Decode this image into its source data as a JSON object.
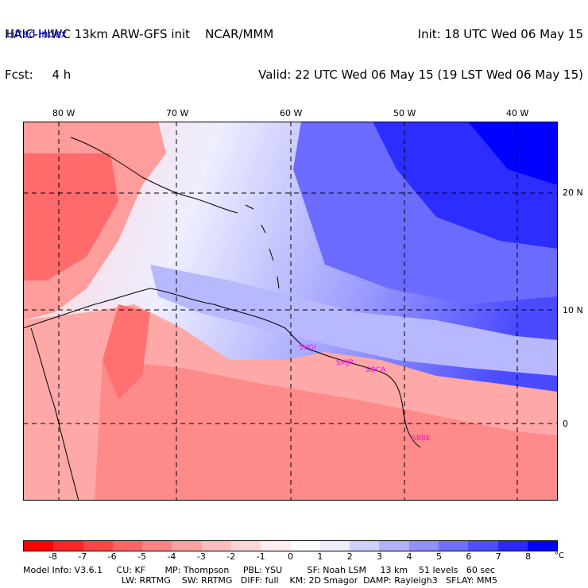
{
  "header": {
    "left_line1": "HAIC-HIWC 13km ARW-GFS init    NCAR/MMM",
    "left_line2": "Fcst:     4 h",
    "right_line1": "Init: 18 UTC Wed 06 May 15",
    "right_line2": "Valid: 22 UTC Wed 06 May 15 (19 LST Wed 06 May 15)",
    "field": "Lifted index"
  },
  "map": {
    "lon_labels": [
      "80 W",
      "70 W",
      "60 W",
      "50 W",
      "40 W"
    ],
    "lat_labels": [
      "20 N",
      "10 N",
      "0"
    ],
    "stations": [
      "SVGI",
      "SMJP",
      "SOCA",
      "SBBE"
    ],
    "station_color": "#ff00ff",
    "grid_color": "#000000",
    "palette_note_colors": {
      "strong_negative": "#ff3b3b",
      "neutral": "#f4f4ff",
      "strong_positive": "#0000ff"
    }
  },
  "colorbar": {
    "unit": "°C",
    "ticks": [
      "-8",
      "-7",
      "-6",
      "-5",
      "-4",
      "-3",
      "-2",
      "-1",
      "0",
      "1",
      "2",
      "3",
      "4",
      "5",
      "6",
      "7",
      "8"
    ],
    "colors": [
      "#ff0000",
      "#ff2525",
      "#ff4646",
      "#ff6565",
      "#ff8383",
      "#ffa0a0",
      "#ffbcbc",
      "#ffd6d6",
      "#ffeeee",
      "#ffffff",
      "#eeeeff",
      "#d0d0ff",
      "#b0b0ff",
      "#9090ff",
      "#7070ff",
      "#4f4fff",
      "#2a2aff",
      "#0000ff"
    ]
  },
  "model_info": {
    "line1": "Model Info: V3.6.1     CU: KF       MP: Thompson     PBL: YSU         SF: Noah LSM     13 km    51 levels   60 sec",
    "line2": "LW: RRTMG    SW: RRTMG   DIFF: full    KM: 2D Smagor  DAMP: Rayleigh3   SFLAY: MM5"
  }
}
